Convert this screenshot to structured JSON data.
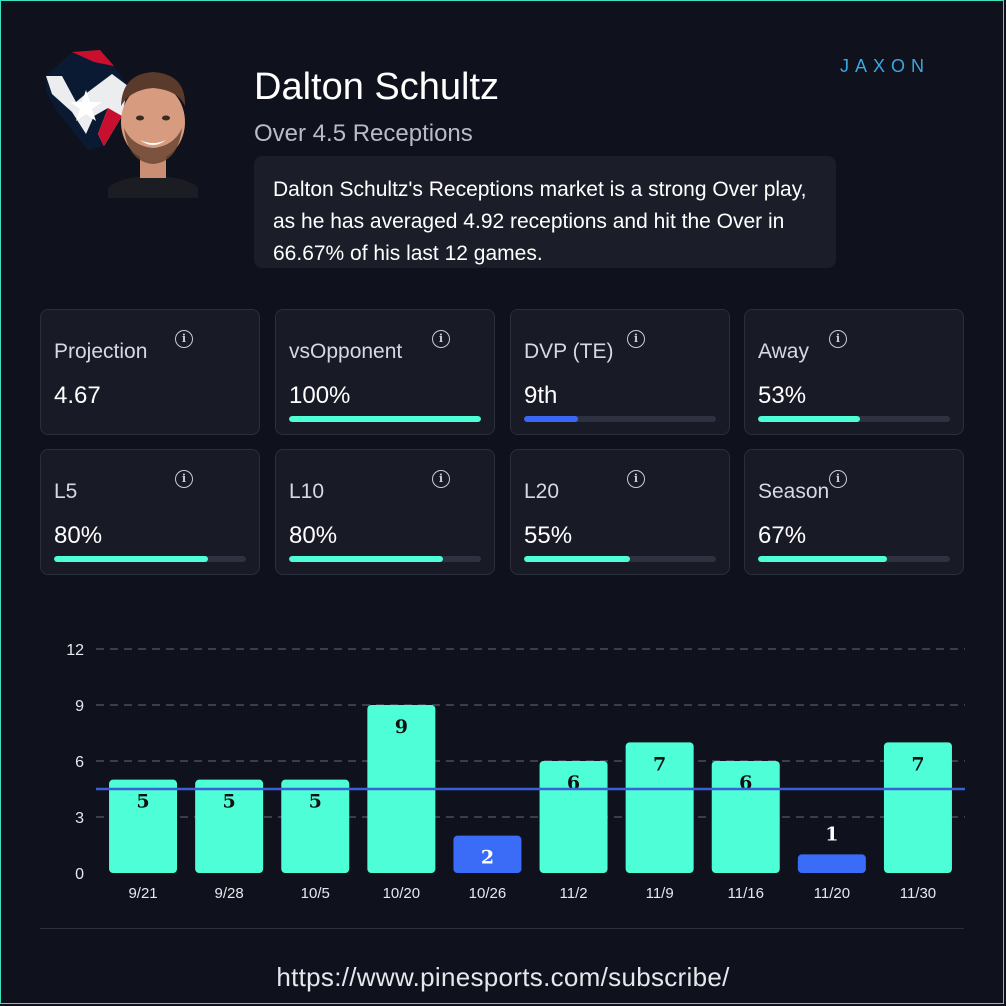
{
  "brand": {
    "logo_text": "JAXON"
  },
  "player": {
    "name": "Dalton Schultz",
    "market": "Over 4.5 Receptions",
    "summary": "Dalton Schultz's Receptions market is a strong Over play, as he has averaged 4.92 receptions and hit the Over in 66.67% of his last 12 games."
  },
  "stats": [
    {
      "label": "Projection",
      "value": "4.67",
      "bar_pct": null,
      "color": null
    },
    {
      "label": "vsOpponent",
      "value": "100%",
      "bar_pct": 100,
      "color": "#4dfed6"
    },
    {
      "label": "DVP (TE)",
      "value": "9th",
      "bar_pct": 28,
      "color": "#3b67f6"
    },
    {
      "label": "Away",
      "value": "53%",
      "bar_pct": 53,
      "color": "#4dfed6"
    },
    {
      "label": "L5",
      "value": "80%",
      "bar_pct": 80,
      "color": "#4dfed6"
    },
    {
      "label": "L10",
      "value": "80%",
      "bar_pct": 80,
      "color": "#4dfed6"
    },
    {
      "label": "L20",
      "value": "55%",
      "bar_pct": 55,
      "color": "#4dfed6"
    },
    {
      "label": "Season",
      "value": "67%",
      "bar_pct": 67,
      "color": "#4dfed6"
    }
  ],
  "chart_data": {
    "type": "bar",
    "categories": [
      "9/21",
      "9/28",
      "10/5",
      "10/20",
      "10/26",
      "11/2",
      "11/9",
      "11/16",
      "11/20",
      "11/30"
    ],
    "values": [
      5,
      5,
      5,
      9,
      2,
      6,
      7,
      6,
      1,
      7
    ],
    "line": 4.5,
    "ylim": [
      0,
      12
    ],
    "yticks": [
      0,
      3,
      6,
      9,
      12
    ],
    "over_color": "#4dfed6",
    "under_color": "#3b6cf8",
    "line_color": "#3b5fd8",
    "grid": true
  },
  "footer": {
    "url": "https://www.pinesports.com/subscribe/"
  },
  "info_glyph": "i"
}
